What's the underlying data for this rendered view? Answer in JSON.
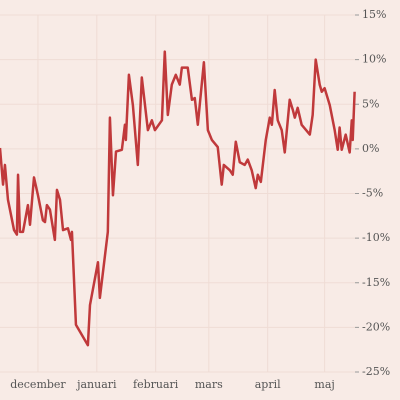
{
  "chart_data": {
    "type": "line",
    "x": [
      0,
      1.6,
      2.6,
      4.2,
      7.4,
      8.9,
      9.5,
      10.5,
      12.1,
      14.7,
      15.8,
      17.9,
      20,
      22.6,
      23.7,
      24.7,
      26.3,
      28.9,
      30,
      31.6,
      33.2,
      35.8,
      37.4,
      37.9,
      40,
      46.3,
      47.4,
      51.6,
      52.6,
      56.8,
      57.9,
      59.5,
      61.1,
      64.2,
      65.8,
      66.3,
      67.9,
      70,
      72.6,
      74.7,
      77.9,
      80,
      81.6,
      85.3,
      86.8,
      88.4,
      90.5,
      92.6,
      94.7,
      95.8,
      98.9,
      101.1,
      102.6,
      104.2,
      107.4,
      109.5,
      111.6,
      114.7,
      116.8,
      117.9,
      121.1,
      122.6,
      124.2,
      126.3,
      128.9,
      130.5,
      132.6,
      134.7,
      135.8,
      137.4,
      140,
      142.1,
      143.2,
      144.7,
      146.3,
      148.4,
      150,
      151.1,
      152.6,
      154.2,
      155.3,
      156.8,
      158.9,
      163.2,
      164.7,
      166.3,
      168.4,
      169.5,
      171,
      173.7,
      176.3,
      177.9,
      178.9,
      180,
      182.1,
      184.2,
      185.3,
      185.8,
      186.8
    ],
    "series": [
      {
        "color": "#c0393b",
        "values": [
          0.1,
          -4,
          -1.8,
          -5.7,
          -9.1,
          -9.6,
          -2.9,
          -9.3,
          -9.3,
          -6.3,
          -8.5,
          -3.2,
          -5.2,
          -8,
          -8.2,
          -6.3,
          -6.8,
          -10.2,
          -4.6,
          -5.7,
          -9.1,
          -8.9,
          -10.2,
          -9.3,
          -19.7,
          -22,
          -17.5,
          -12.7,
          -16.7,
          -9.3,
          3.5,
          -5.2,
          -0.3,
          -0.1,
          2.7,
          1,
          8.3,
          4.9,
          -1.8,
          8,
          2.1,
          3.2,
          2.1,
          3.2,
          10.9,
          3.8,
          7.2,
          8.3,
          7.2,
          9.1,
          9.1,
          5.5,
          5.7,
          2.7,
          9.7,
          2.1,
          1,
          0.2,
          -4,
          -1.8,
          -2.4,
          -2.9,
          0.8,
          -1.5,
          -1.8,
          -1.2,
          -2.4,
          -4.4,
          -2.9,
          -3.7,
          1,
          3.5,
          2.7,
          6.6,
          3.2,
          2.1,
          -0.4,
          2.1,
          5.5,
          4.4,
          3.5,
          4.6,
          2.7,
          1.6,
          3.8,
          10,
          7.2,
          6.4,
          6.8,
          4.9,
          2.1,
          -0.1,
          2.4,
          -0.1,
          1.6,
          -0.4,
          3.2,
          1,
          6.4
        ]
      }
    ],
    "xlim": [
      0,
      187
    ],
    "xticks": [
      {
        "value": 20,
        "label": "december"
      },
      {
        "value": 51,
        "label": "januari"
      },
      {
        "value": 82,
        "label": "februari"
      },
      {
        "value": 110,
        "label": "mars"
      },
      {
        "value": 141,
        "label": "april"
      },
      {
        "value": 171,
        "label": "maj"
      }
    ],
    "ylim": [
      -25,
      15
    ],
    "yticks": [
      {
        "value": 15,
        "label": "15%"
      },
      {
        "value": 10,
        "label": "10%"
      },
      {
        "value": 5,
        "label": "5%"
      },
      {
        "value": 0,
        "label": "0%"
      },
      {
        "value": -5,
        "label": "-5%"
      },
      {
        "value": -10,
        "label": "-10%"
      },
      {
        "value": -15,
        "label": "-15%"
      },
      {
        "value": -20,
        "label": "-20%"
      },
      {
        "value": -25,
        "label": "-25%"
      }
    ],
    "grid": true
  }
}
